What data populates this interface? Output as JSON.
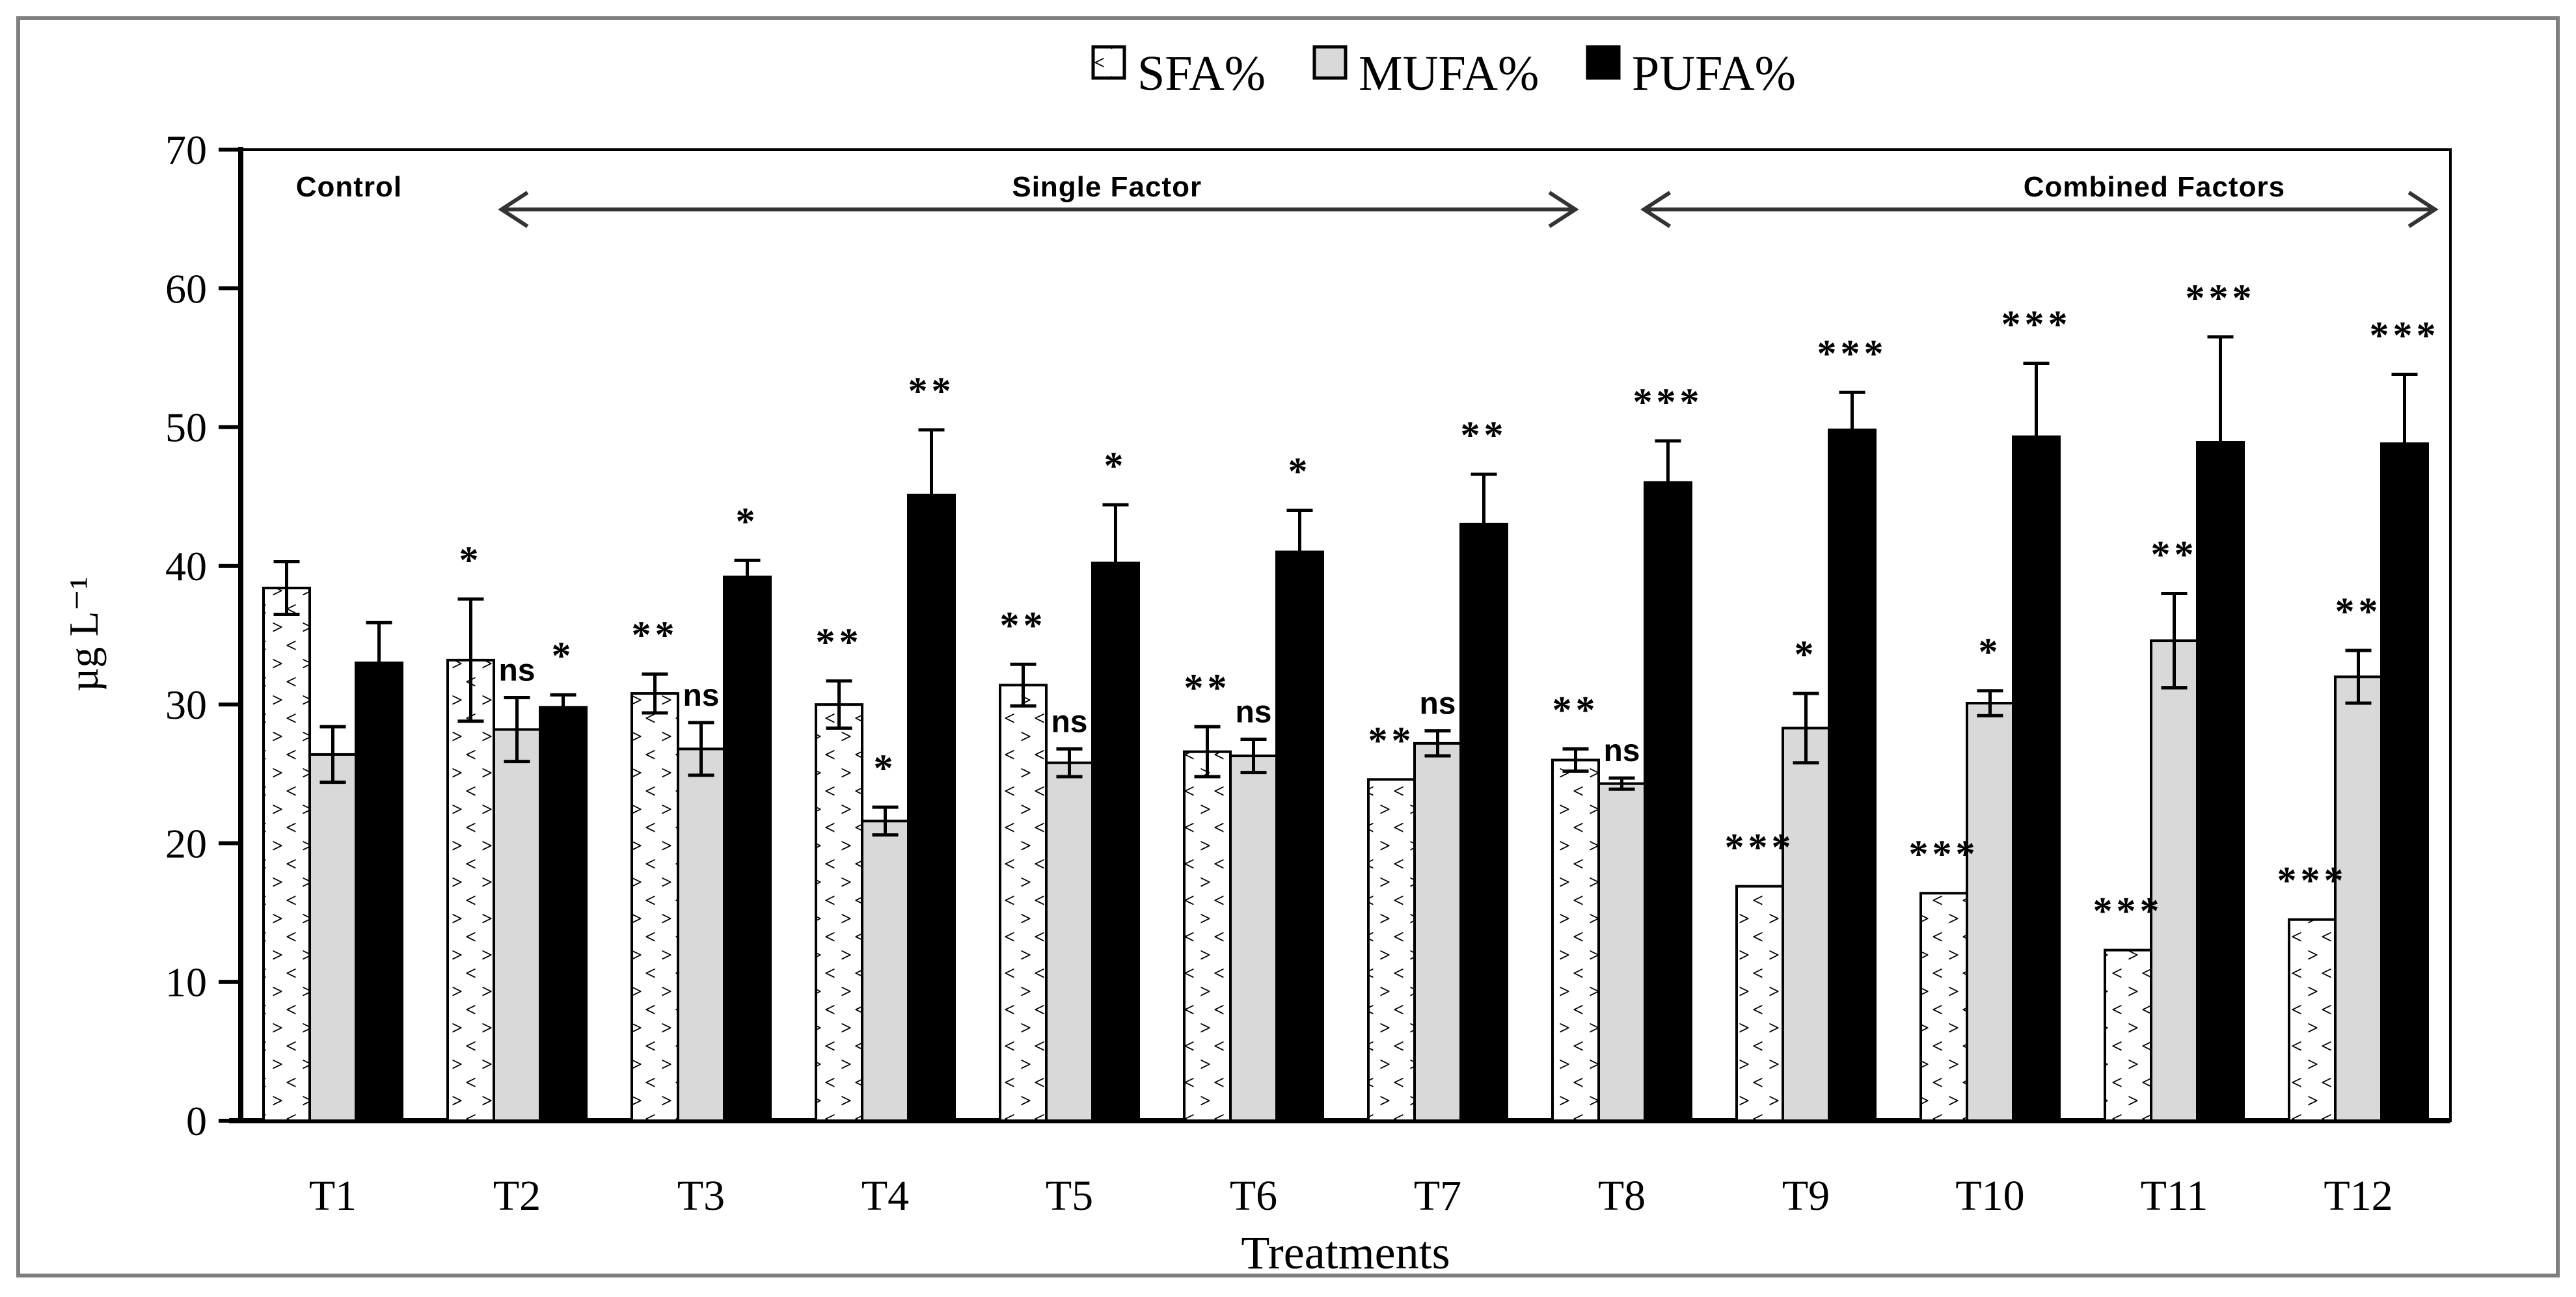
{
  "chart_data": {
    "type": "bar",
    "title": "",
    "xlabel": "Treatments",
    "ylabel": "µg L⁻¹",
    "ylim": [
      0,
      70
    ],
    "ytick_step": 10,
    "grid": false,
    "legend_position": "top-center",
    "categories": [
      "T1",
      "T2",
      "T3",
      "T4",
      "T5",
      "T6",
      "T7",
      "T8",
      "T9",
      "T10",
      "T11",
      "T12"
    ],
    "series": [
      {
        "name": "SFA%",
        "style": "blue-dot-pattern",
        "values": [
          38.4,
          33.2,
          30.8,
          30.0,
          31.4,
          26.6,
          24.6,
          26.0,
          16.9,
          16.4,
          12.3,
          14.5
        ],
        "errors": [
          1.9,
          4.4,
          1.4,
          1.7,
          1.5,
          1.8,
          0,
          0.8,
          0,
          0,
          0,
          0
        ],
        "sig": [
          null,
          "*",
          "**",
          "**",
          "**",
          "**",
          "**",
          "**",
          "***",
          "***",
          "***",
          "***"
        ],
        "sig_color": "#0000ee"
      },
      {
        "name": "MUFA%",
        "style": "light-gray",
        "values": [
          26.4,
          28.2,
          26.8,
          21.6,
          25.8,
          26.3,
          27.2,
          24.3,
          28.3,
          30.1,
          34.6,
          32.0
        ],
        "errors": [
          2.0,
          2.3,
          1.9,
          1.0,
          1.0,
          1.2,
          0.9,
          0.4,
          2.5,
          0.9,
          3.4,
          1.9
        ],
        "sig": [
          null,
          "ns",
          "ns",
          "*",
          "ns",
          "ns",
          "ns",
          "ns",
          "*",
          "*",
          "**",
          "**"
        ],
        "sig_color": "#000000"
      },
      {
        "name": "PUFA%",
        "style": "black",
        "values": [
          33.0,
          29.8,
          39.2,
          45.1,
          40.2,
          41.0,
          43.0,
          46.0,
          49.8,
          49.3,
          48.9,
          48.8
        ],
        "errors": [
          2.9,
          0.9,
          1.2,
          4.7,
          4.2,
          3.0,
          3.6,
          3.0,
          2.7,
          5.3,
          7.6,
          5.0
        ],
        "sig": [
          null,
          "*",
          "*",
          "**",
          "*",
          "*",
          "**",
          "***",
          "***",
          "***",
          "***",
          "***"
        ],
        "sig_color": "#000000"
      }
    ],
    "annotations": {
      "control_label": "Control",
      "control_center_frac": 0.049,
      "single_label": "Single Factor",
      "single_label_center_frac": 0.392,
      "single_arrow_frac": [
        0.118,
        0.604
      ],
      "combined_label": "Combined  Factors",
      "combined_label_center_frac": 0.866,
      "combined_arrow_frac": [
        0.635,
        0.993
      ]
    },
    "colors": {
      "sfa_fill": "#ffffff",
      "sfa_dots": "#0000cc",
      "mufa_fill": "#d9d9d9",
      "pufa_fill": "#000000",
      "bar_outline": "#000000",
      "sig_blue": "#0000ee",
      "axis": "#000000",
      "figure_border": "#7f7f7f",
      "arrow": "#333333"
    }
  }
}
